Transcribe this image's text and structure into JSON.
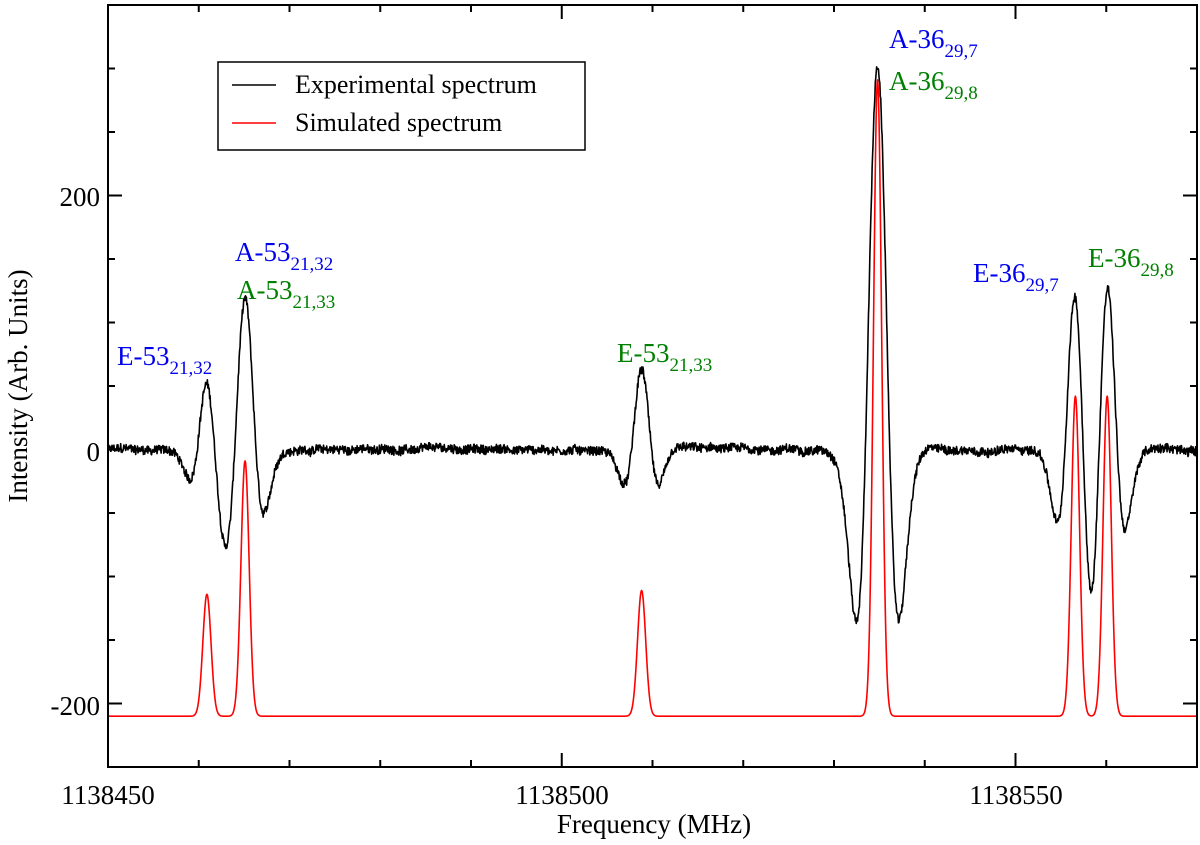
{
  "chart_data": {
    "type": "line",
    "xlabel": "Frequency (MHz)",
    "ylabel": "Intensity (Arb. Units)",
    "xlim": [
      1138450,
      1138570
    ],
    "ylim": [
      -250,
      350
    ],
    "x_major_ticks": [
      1138450,
      1138500,
      1138550
    ],
    "x_tick_labels": [
      "1138450",
      "1138500",
      "1138550"
    ],
    "x_minor_step": 10,
    "y_major_ticks": [
      200,
      0,
      -200
    ],
    "y_tick_labels": [
      "200",
      "0",
      "-200"
    ],
    "y_minor_step": 50,
    "grid": false,
    "legend": {
      "placement": "top-left",
      "entries": [
        {
          "label": "Experimental spectrum",
          "color": "#000000"
        },
        {
          "label": "Simulated spectrum",
          "color": "#ff0000"
        }
      ]
    },
    "series": [
      {
        "name": "Experimental spectrum",
        "color": "#000000",
        "baseline": 0,
        "lineshape": "second-derivative",
        "lines": [
          {
            "center": 1138460.9,
            "amplitude": 55,
            "width": 1.1
          },
          {
            "center": 1138465.1,
            "amplitude": 118,
            "width": 1.2
          },
          {
            "center": 1138508.8,
            "amplitude": 62,
            "width": 1.1
          },
          {
            "center": 1138534.8,
            "amplitude": 302,
            "width": 1.35
          },
          {
            "center": 1138556.6,
            "amplitude": 130,
            "width": 1.15
          },
          {
            "center": 1138560.1,
            "amplitude": 138,
            "width": 1.15
          }
        ]
      },
      {
        "name": "Simulated spectrum",
        "color": "#ff0000",
        "baseline": -210,
        "lineshape": "gaussian",
        "lines": [
          {
            "center": 1138460.9,
            "amplitude": 96,
            "width": 0.45
          },
          {
            "center": 1138465.1,
            "amplitude": 201,
            "width": 0.45
          },
          {
            "center": 1138508.8,
            "amplitude": 99,
            "width": 0.45
          },
          {
            "center": 1138534.8,
            "amplitude": 501,
            "width": 0.45
          },
          {
            "center": 1138556.6,
            "amplitude": 252,
            "width": 0.45
          },
          {
            "center": 1138560.1,
            "amplitude": 252,
            "width": 0.45
          }
        ]
      }
    ],
    "annotations": [
      {
        "id": "e53a",
        "main": "E-53",
        "sub": "21,32",
        "color": "#0000ee"
      },
      {
        "id": "a53a",
        "main": "A-53",
        "sub": "21,32",
        "color": "#0000ee"
      },
      {
        "id": "a53b",
        "main": "A-53",
        "sub": "21,33",
        "color": "#008000"
      },
      {
        "id": "e53b",
        "main": "E-53",
        "sub": "21,33",
        "color": "#008000"
      },
      {
        "id": "a36a",
        "main": "A-36",
        "sub": "29,7",
        "color": "#0000ee"
      },
      {
        "id": "a36b",
        "main": "A-36",
        "sub": "29,8",
        "color": "#008000"
      },
      {
        "id": "e36a",
        "main": "E-36",
        "sub": "29,7",
        "color": "#0000ee"
      },
      {
        "id": "e36b",
        "main": "E-36",
        "sub": "29,8",
        "color": "#008000"
      }
    ]
  }
}
